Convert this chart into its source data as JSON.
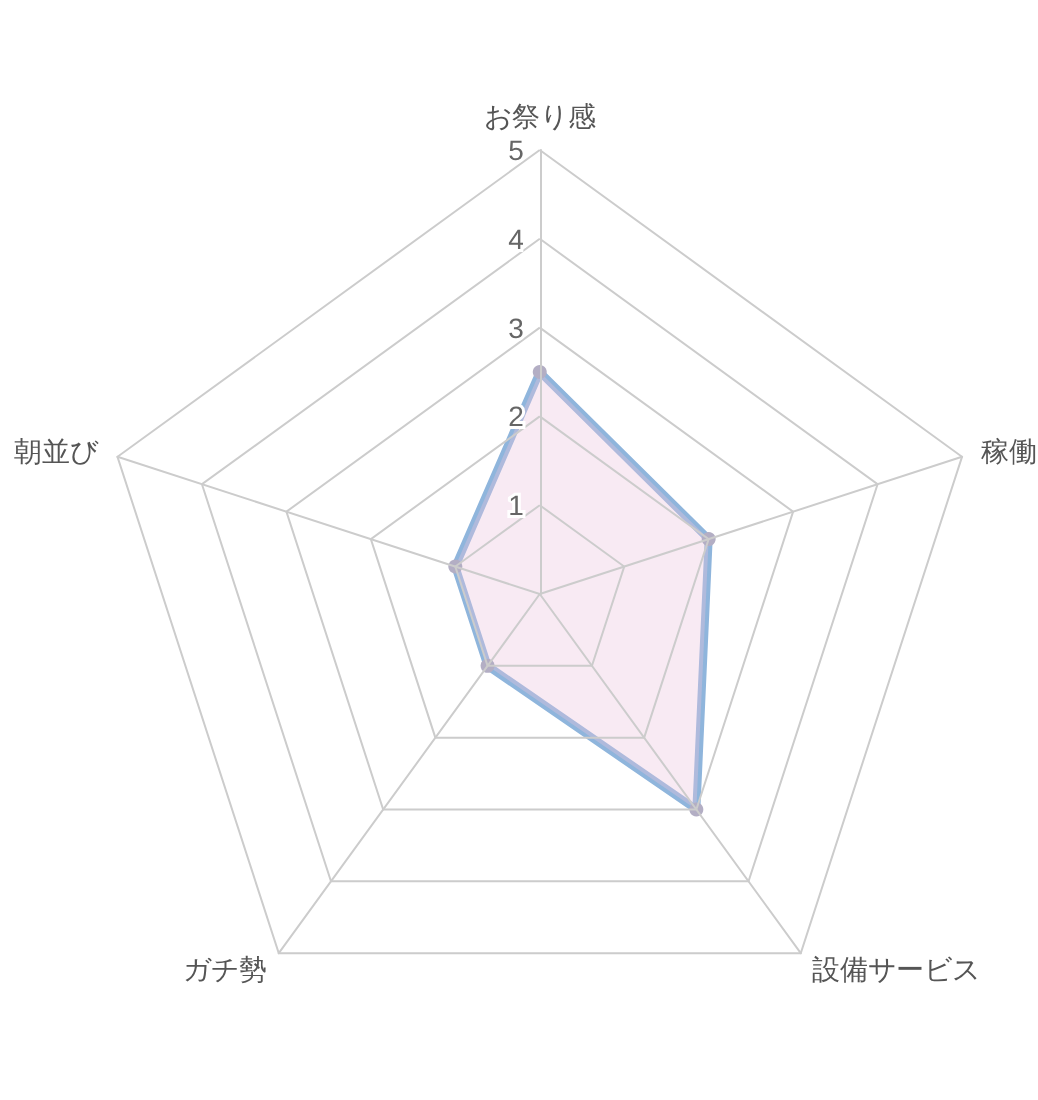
{
  "chart_data": {
    "type": "radar",
    "categories": [
      "お祭り感",
      "稼働",
      "設備サービス",
      "ガチ勢",
      "朝並び"
    ],
    "series": [
      {
        "color": "#8fb5dc",
        "values": [
          2.5,
          2,
          3,
          1,
          1
        ]
      }
    ],
    "ylim": [
      0,
      5
    ],
    "yticks": [
      1,
      2,
      3,
      4,
      5
    ],
    "grid": true,
    "marker": "circle"
  }
}
